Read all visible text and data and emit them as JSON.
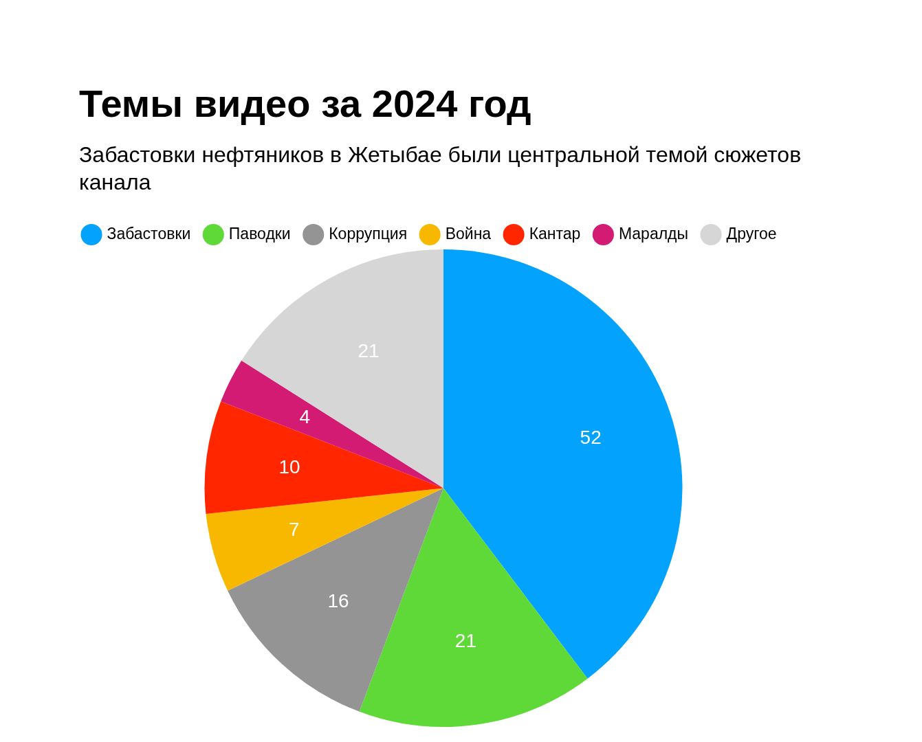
{
  "chart_data": {
    "type": "pie",
    "title": "Темы видео за 2024 год",
    "subtitle": "Забастовки нефтяников в Жетыбае были центральной темой сюжетов канала",
    "categories": [
      "Забастовки",
      "Паводки",
      "Коррупция",
      "Война",
      "Кантар",
      "Маралды",
      "Другое"
    ],
    "values": [
      52,
      21,
      16,
      7,
      10,
      4,
      21
    ],
    "colors": [
      "#03a2fc",
      "#5fd938",
      "#949494",
      "#f8b800",
      "#ff2600",
      "#d41b73",
      "#d6d6d6"
    ],
    "legend": "top left",
    "data_labels": true
  }
}
